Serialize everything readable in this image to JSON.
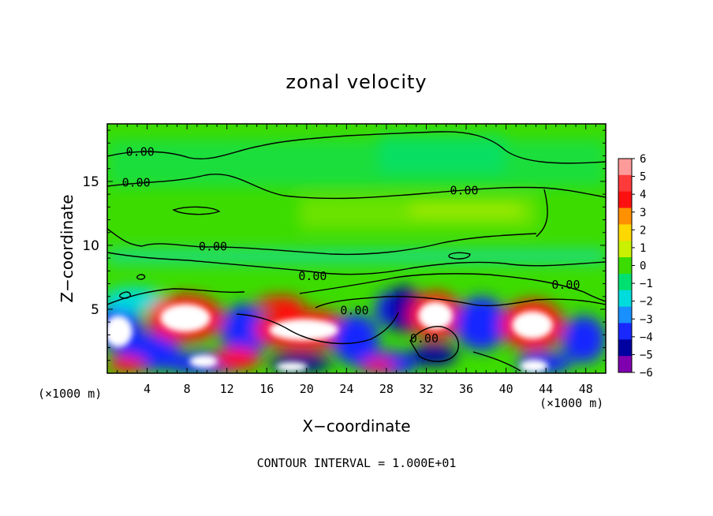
{
  "chart_data": {
    "type": "heatmap",
    "title": "zonal velocity",
    "xlabel": "X−coordinate",
    "ylabel": "Z−coordinate",
    "x_unit_left": "(×1000 m)",
    "x_unit_right": "(×1000 m)",
    "footer": "CONTOUR INTERVAL = 1.000E+01",
    "xlim": [
      0,
      50
    ],
    "ylim": [
      0,
      19.5
    ],
    "x_ticks": [
      4,
      8,
      12,
      16,
      20,
      24,
      28,
      32,
      36,
      40,
      44,
      48
    ],
    "x_tick_labels": [
      "4",
      "8",
      "12",
      "16",
      "20",
      "24",
      "28",
      "32",
      "36",
      "40",
      "44",
      "48"
    ],
    "y_ticks": [
      5,
      10,
      15
    ],
    "y_tick_labels": [
      "5",
      "10",
      "15"
    ],
    "colorbar": {
      "values": [
        6,
        5,
        4,
        3,
        2,
        1,
        0,
        -1,
        -2,
        -3,
        -4,
        -5,
        -6
      ],
      "labels": [
        "6",
        "5",
        "4",
        "3",
        "2",
        "1",
        "0",
        "−1",
        "−2",
        "−3",
        "−4",
        "−5",
        "−6"
      ],
      "colors": [
        "#ff9a9a",
        "#ff3a3a",
        "#ff1010",
        "#ff9000",
        "#ffd800",
        "#c8f000",
        "#3cdc00",
        "#00e070",
        "#00dcdc",
        "#1890ff",
        "#1828ff",
        "#0000a0",
        "#8000b0"
      ]
    },
    "contour_labels": [
      {
        "text": "0.00",
        "x": 3.3,
        "z": 17.3
      },
      {
        "text": "0.00",
        "x": 2.9,
        "z": 14.9
      },
      {
        "text": "0.00",
        "x": 35.8,
        "z": 14.3
      },
      {
        "text": "0.00",
        "x": 10.6,
        "z": 9.9
      },
      {
        "text": "0.00",
        "x": 20.6,
        "z": 7.6
      },
      {
        "text": "0.00",
        "x": 46.0,
        "z": 6.9
      },
      {
        "text": "0.00",
        "x": 24.8,
        "z": 4.9
      },
      {
        "text": "0.00",
        "x": 31.8,
        "z": 2.7
      }
    ],
    "notes": "Background near 0 (green) aloft with weak positive bands; strong alternating positive/negative cells below z=7 with values exceeding +/-6."
  }
}
